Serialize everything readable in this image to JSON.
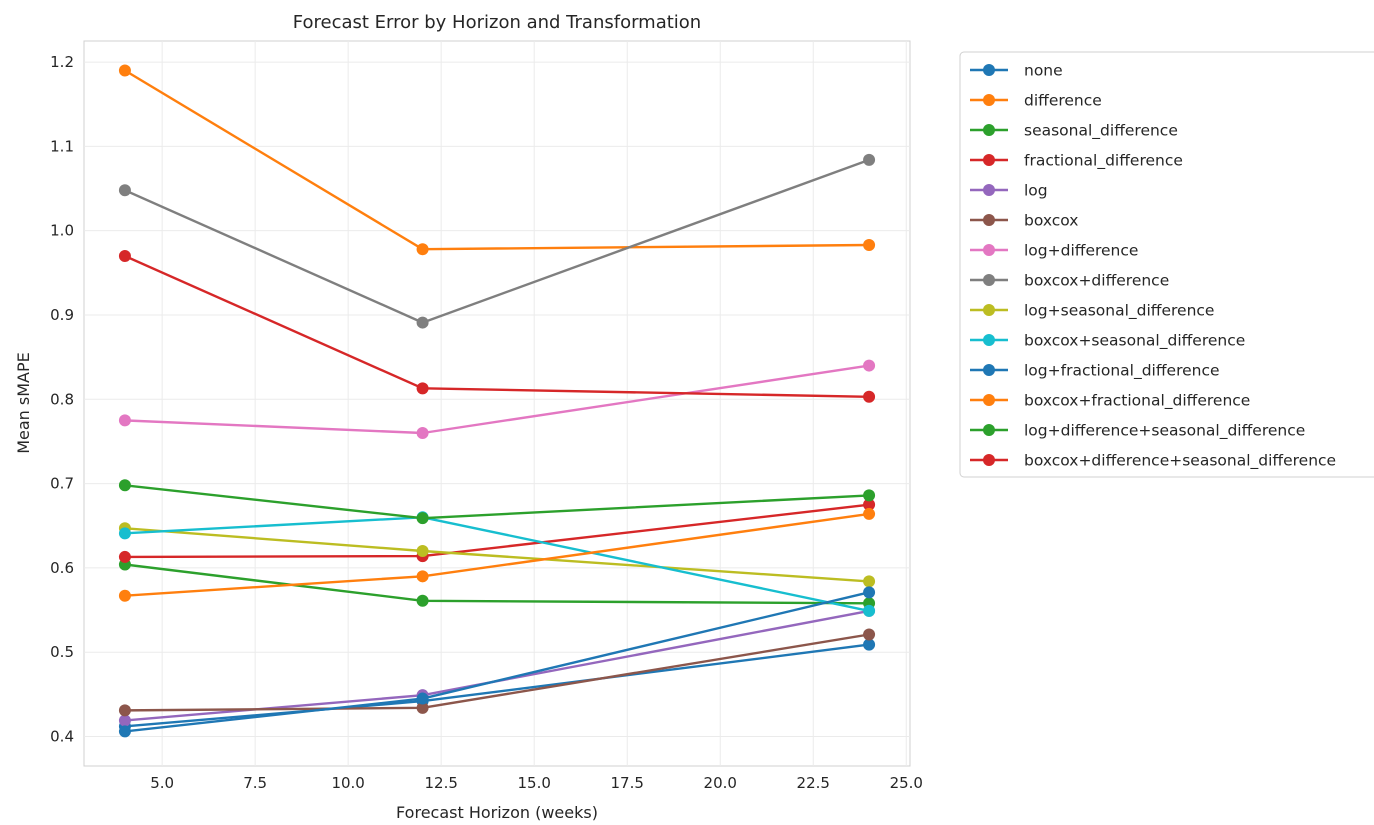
{
  "chart_data": {
    "type": "line",
    "title": "Forecast Error by Horizon and Transformation",
    "xlabel": "Forecast Horizon (weeks)",
    "ylabel": "Mean sMAPE",
    "xlim": [
      2.9,
      25.1
    ],
    "ylim": [
      0.365,
      1.225
    ],
    "x": [
      4,
      12,
      24
    ],
    "xticks": [
      "5.0",
      "7.5",
      "10.0",
      "12.5",
      "15.0",
      "17.5",
      "20.0",
      "22.5",
      "25.0"
    ],
    "yticks": [
      "0.4",
      "0.5",
      "0.6",
      "0.7",
      "0.8",
      "0.9",
      "1.0",
      "1.1",
      "1.2"
    ],
    "grid": true,
    "legend_position": "outside upper right",
    "series": [
      {
        "name": "none",
        "color": "#1f77b4",
        "values": [
          0.412,
          0.442,
          0.509
        ]
      },
      {
        "name": "difference",
        "color": "#ff7f0e",
        "values": [
          1.19,
          0.978,
          0.983
        ]
      },
      {
        "name": "seasonal_difference",
        "color": "#2ca02c",
        "values": [
          0.604,
          0.561,
          0.558
        ]
      },
      {
        "name": "fractional_difference",
        "color": "#d62728",
        "values": [
          0.613,
          0.614,
          0.675
        ]
      },
      {
        "name": "log",
        "color": "#9467bd",
        "values": [
          0.419,
          0.449,
          0.549
        ]
      },
      {
        "name": "boxcox",
        "color": "#8c564b",
        "values": [
          0.431,
          0.434,
          0.521
        ]
      },
      {
        "name": "log+difference",
        "color": "#e377c2",
        "values": [
          0.775,
          0.76,
          0.84
        ]
      },
      {
        "name": "boxcox+difference",
        "color": "#7f7f7f",
        "values": [
          1.048,
          0.891,
          1.084
        ]
      },
      {
        "name": "log+seasonal_difference",
        "color": "#bcbd22",
        "values": [
          0.647,
          0.62,
          0.584
        ]
      },
      {
        "name": "boxcox+seasonal_difference",
        "color": "#17becf",
        "values": [
          0.641,
          0.66,
          0.549
        ]
      },
      {
        "name": "log+fractional_difference",
        "color": "#1f77b4",
        "values": [
          0.406,
          0.445,
          0.571
        ]
      },
      {
        "name": "boxcox+fractional_difference",
        "color": "#ff7f0e",
        "values": [
          0.567,
          0.59,
          0.664
        ]
      },
      {
        "name": "log+difference+seasonal_difference",
        "color": "#2ca02c",
        "values": [
          0.698,
          0.659,
          0.686
        ]
      },
      {
        "name": "boxcox+difference+seasonal_difference",
        "color": "#d62728",
        "values": [
          0.97,
          0.813,
          0.803
        ]
      }
    ]
  }
}
